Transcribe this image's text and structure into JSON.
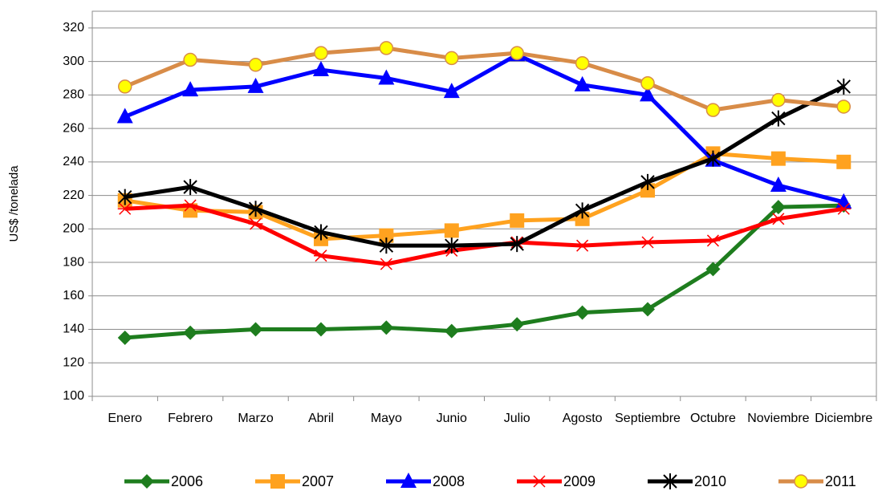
{
  "chart_data": {
    "type": "line",
    "y_label": "US$ /tonelada",
    "categories": [
      "Enero",
      "Febrero",
      "Marzo",
      "Abril",
      "Mayo",
      "Junio",
      "Julio",
      "Agosto",
      "Septiembre",
      "Octubre",
      "Noviembre",
      "Diciembre"
    ],
    "series": [
      {
        "name": "2006",
        "color": "#1e7d1e",
        "marker": "diamond",
        "marker_color": "#1e7d1e",
        "values": [
          135,
          138,
          140,
          140,
          141,
          139,
          143,
          150,
          152,
          176,
          213,
          214
        ]
      },
      {
        "name": "2007",
        "color": "#ffa21f",
        "marker": "square",
        "marker_color": "#ffa21f",
        "values": [
          217,
          211,
          210,
          194,
          196,
          199,
          205,
          206,
          223,
          245,
          242,
          240
        ]
      },
      {
        "name": "2008",
        "color": "#0000ff",
        "marker": "triangle",
        "marker_color": "#0000ff",
        "values": [
          267,
          283,
          285,
          295,
          290,
          282,
          304,
          286,
          280,
          241,
          226,
          216
        ]
      },
      {
        "name": "2009",
        "color": "#ff0000",
        "marker": "star",
        "marker_color": "#ff0000",
        "values": [
          212,
          214,
          203,
          184,
          179,
          187,
          192,
          190,
          192,
          193,
          206,
          212
        ]
      },
      {
        "name": "2010",
        "color": "#000000",
        "marker": "xstar",
        "marker_color": "#000000",
        "values": [
          219,
          225,
          212,
          198,
          190,
          190,
          191,
          211,
          228,
          242,
          266,
          285
        ]
      },
      {
        "name": "2011",
        "color": "#d88c48",
        "marker": "circle",
        "marker_color": "#ffff00",
        "values": [
          285,
          301,
          298,
          305,
          308,
          302,
          305,
          299,
          287,
          271,
          277,
          273
        ]
      }
    ],
    "ylim": [
      100,
      330
    ],
    "yticks": [
      100,
      120,
      140,
      160,
      180,
      200,
      220,
      240,
      260,
      280,
      300,
      320
    ],
    "grid": true,
    "legend": "bottom"
  }
}
